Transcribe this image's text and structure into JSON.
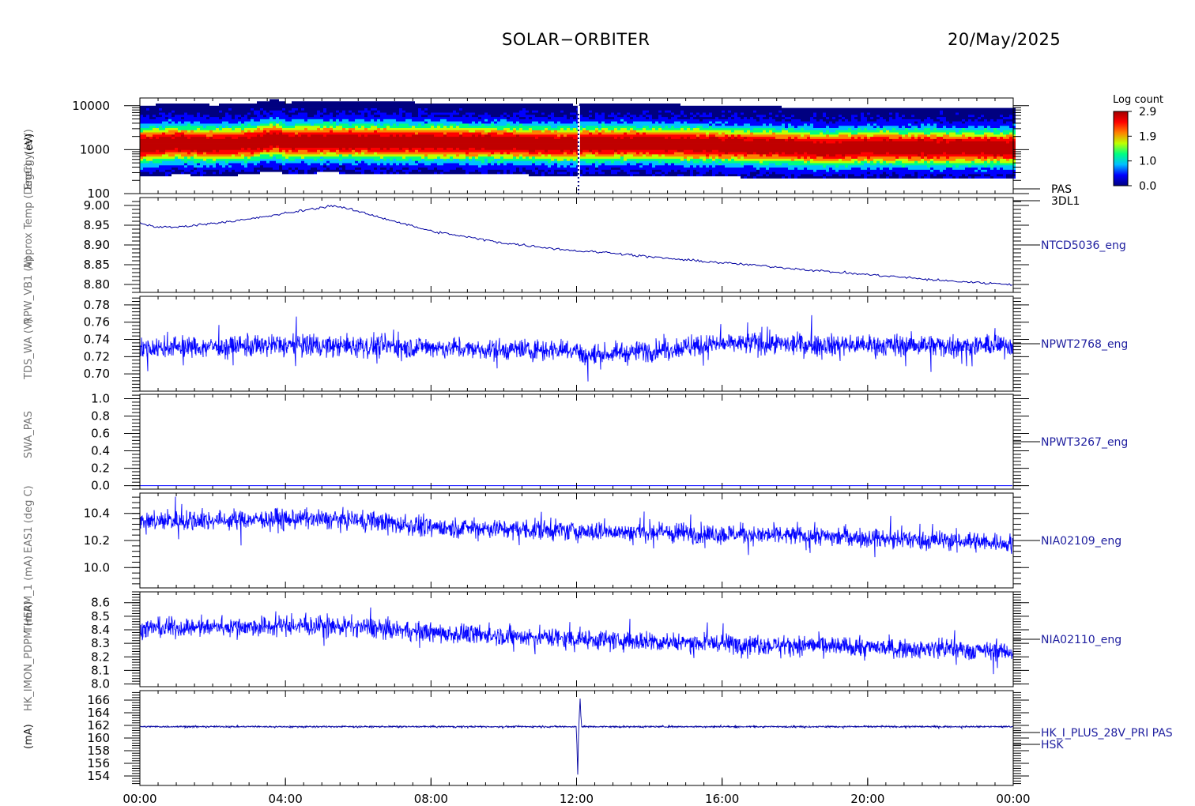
{
  "header": {
    "title": "SOLAR−ORBITER",
    "date": "20/May/2025"
  },
  "y_axis_label_left": "(mA)",
  "y_axis_labels_overlap": [
    "Energy (eV)",
    "Approx Temp (DegC)",
    "RPW_VB1 (V)",
    "TDS_WA (V)",
    "SWA_PAS",
    "EAS1 (deg C)",
    "THERM_1 (mA)",
    "HK_IMON_PDPM (mA)"
  ],
  "colorbar": {
    "title": "Log count",
    "ticks": [
      "2.9",
      "1.9",
      "1.0",
      "0.0"
    ]
  },
  "x_ticks": [
    "00:00",
    "04:00",
    "08:00",
    "12:00",
    "16:00",
    "20:00",
    "00:00"
  ],
  "chart_data": [
    {
      "type": "heatmap",
      "panel": "PAS 3DL1",
      "right_label_lines": [
        "PAS",
        "3DL1"
      ],
      "ylabel": "(eV)",
      "yscale": "log",
      "ylim": [
        100,
        15000
      ],
      "yticks": [
        "10000",
        "1000",
        "100"
      ],
      "xlim_hours": [
        0,
        24
      ],
      "peak_energy_eV": {
        "x_hours": [
          0,
          1,
          2,
          3,
          3.7,
          4,
          5,
          6,
          8,
          10,
          12,
          12.1,
          14,
          16,
          18,
          18.8,
          20,
          22,
          24
        ],
        "values": [
          1200,
          1350,
          1250,
          1350,
          1650,
          1400,
          1500,
          1450,
          1400,
          1350,
          1250,
          1300,
          1300,
          1200,
          1100,
          1000,
          1100,
          1050,
          1050
        ]
      },
      "colormap": [
        "#000080",
        "#0000ff",
        "#00c0ff",
        "#00ff80",
        "#c0ff00",
        "#ff8000",
        "#ff0000",
        "#c00000"
      ]
    },
    {
      "type": "line",
      "panel": "NTCD5036_eng",
      "ylim": [
        8.78,
        9.02
      ],
      "yticks": [
        "9.00",
        "8.95",
        "8.90",
        "8.85",
        "8.80"
      ],
      "x_hours": [
        0,
        0.5,
        1,
        2,
        3,
        4,
        5,
        5.3,
        6,
        7,
        8,
        9,
        10,
        11,
        12,
        13,
        14,
        15,
        16,
        17,
        18,
        19,
        20,
        21,
        22,
        23,
        24
      ],
      "values": [
        8.955,
        8.945,
        8.945,
        8.955,
        8.965,
        8.98,
        8.995,
        9.0,
        8.985,
        8.96,
        8.935,
        8.92,
        8.905,
        8.895,
        8.885,
        8.88,
        8.87,
        8.862,
        8.855,
        8.848,
        8.84,
        8.832,
        8.825,
        8.818,
        8.81,
        8.805,
        8.8
      ],
      "noise": 0.003,
      "color": "#0000a0"
    },
    {
      "type": "line",
      "panel": "NPWT2768_eng",
      "ylim": [
        0.68,
        0.79
      ],
      "yticks": [
        "0.78",
        "0.76",
        "0.74",
        "0.72",
        "0.70"
      ],
      "x_hours": [
        0,
        4,
        8,
        9.5,
        12,
        12.2,
        16,
        20,
        24
      ],
      "values": [
        0.73,
        0.733,
        0.731,
        0.728,
        0.728,
        0.72,
        0.735,
        0.733,
        0.733
      ],
      "noise": 0.012,
      "color": "#0000ff"
    },
    {
      "type": "line",
      "panel": "NPWT3267_eng",
      "ylim": [
        -0.04,
        1.05
      ],
      "yticks": [
        "1.0",
        "0.8",
        "0.6",
        "0.4",
        "0.2",
        "0.0"
      ],
      "x_hours": [
        0,
        24
      ],
      "values": [
        0.0,
        0.0
      ],
      "noise": 0.0,
      "color": "#0000ff"
    },
    {
      "type": "line",
      "panel": "NIA02109_eng",
      "ylim": [
        9.85,
        10.55
      ],
      "yticks": [
        "10.4",
        "10.2",
        "10.0"
      ],
      "x_hours": [
        0,
        4,
        6,
        8,
        12,
        16,
        20,
        24
      ],
      "values": [
        10.34,
        10.36,
        10.35,
        10.3,
        10.27,
        10.25,
        10.22,
        10.18
      ],
      "noise": 0.07,
      "color": "#0000ff"
    },
    {
      "type": "line",
      "panel": "NIA02110_eng",
      "ylim": [
        7.98,
        8.68
      ],
      "yticks": [
        "8.6",
        "8.5",
        "8.4",
        "8.3",
        "8.2",
        "8.1",
        "8.0"
      ],
      "x_hours": [
        0,
        4,
        6,
        8,
        12,
        16,
        20,
        24
      ],
      "values": [
        8.41,
        8.43,
        8.42,
        8.38,
        8.33,
        8.3,
        8.27,
        8.24
      ],
      "noise": 0.07,
      "color": "#0000ff"
    },
    {
      "type": "line",
      "panel": "HK_I_PLUS_28V_PRI PAS HSK",
      "right_label_lines": [
        "HK_I_PLUS_28V_PRI PAS",
        "HSK"
      ],
      "ylim": [
        152.5,
        167.5
      ],
      "yticks": [
        "166",
        "164",
        "162",
        "160",
        "158",
        "156",
        "154"
      ],
      "x_hours": [
        0,
        12,
        12.03,
        12.06,
        12.1,
        12.13,
        12.2,
        24
      ],
      "values": [
        161.8,
        161.8,
        153.5,
        162,
        166.5,
        161.8,
        161.8,
        161.8
      ],
      "noise": 0.12,
      "color": "#0000a0"
    }
  ]
}
